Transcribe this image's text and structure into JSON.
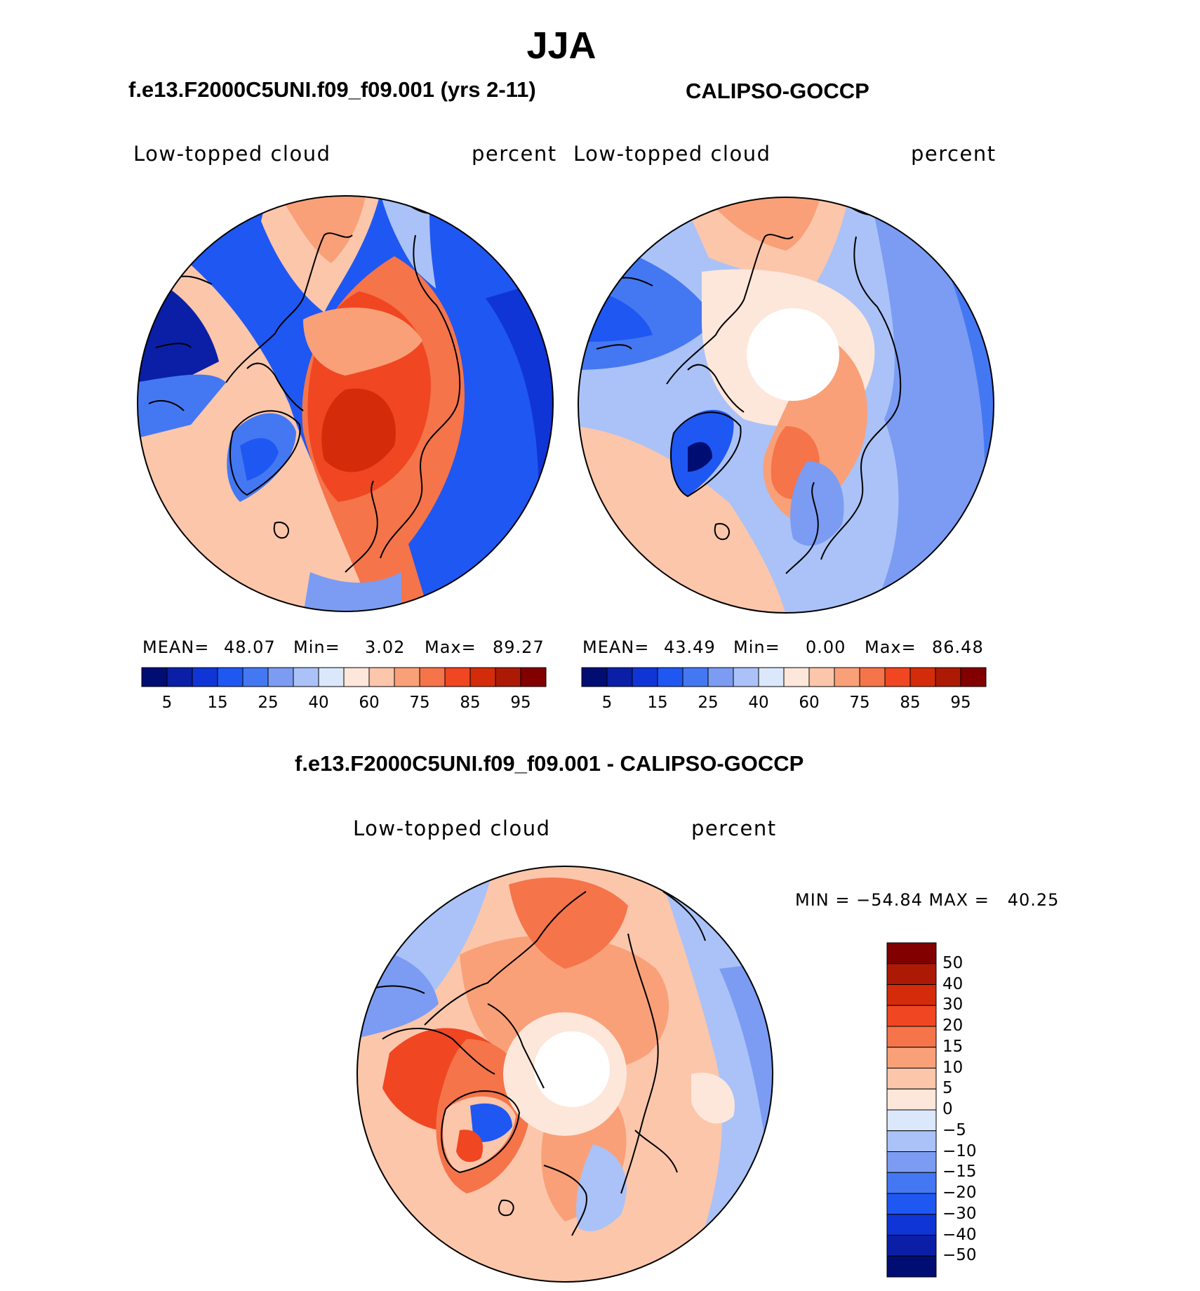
{
  "main_title": "JJA",
  "panels": [
    {
      "header": "f.e13.F2000C5UNI.f09_f09.001 (yrs 2-11)",
      "left_label": "Low-topped cloud",
      "right_label": "percent",
      "stats": {
        "mean_label": "MEAN=",
        "mean": "48.07",
        "min_label": "Min=",
        "min": "3.02",
        "max_label": "Max=",
        "max": "89.27"
      }
    },
    {
      "header": "CALIPSO-GOCCP",
      "left_label": "Low-topped cloud",
      "right_label": "percent",
      "stats": {
        "mean_label": "MEAN=",
        "mean": "43.49",
        "min_label": "Min=",
        "min": "0.00",
        "max_label": "Max=",
        "max": "86.48"
      }
    },
    {
      "header": "f.e13.F2000C5UNI.f09_f09.001 - CALIPSO-GOCCP",
      "left_label": "Low-topped cloud",
      "right_label": "percent",
      "minmax": "MIN = −54.84 MAX =   40.25"
    }
  ],
  "chart_data": [
    {
      "type": "heatmap",
      "projection": "north polar stereographic",
      "title": "f.e13.F2000C5UNI.f09_f09.001 (yrs 2-11)",
      "variable": "Low-topped cloud",
      "units": "percent",
      "mean": 48.07,
      "min": 3.02,
      "max": 89.27,
      "colorbar_ticks": [
        "5",
        "15",
        "25",
        "40",
        "60",
        "75",
        "85",
        "95"
      ],
      "colorbar_orientation": "horizontal"
    },
    {
      "type": "heatmap",
      "projection": "north polar stereographic",
      "title": "CALIPSO-GOCCP",
      "variable": "Low-topped cloud",
      "units": "percent",
      "mean": 43.49,
      "min": 0.0,
      "max": 86.48,
      "colorbar_ticks": [
        "5",
        "15",
        "25",
        "40",
        "60",
        "75",
        "85",
        "95"
      ],
      "colorbar_orientation": "horizontal",
      "missing_region": "pole"
    },
    {
      "type": "heatmap",
      "projection": "north polar stereographic",
      "title": "f.e13.F2000C5UNI.f09_f09.001 - CALIPSO-GOCCP",
      "variable": "Low-topped cloud",
      "units": "percent",
      "min": -54.84,
      "max": 40.25,
      "colorbar_ticks": [
        "50",
        "40",
        "30",
        "20",
        "15",
        "10",
        "5",
        "0",
        "−5",
        "−10",
        "−15",
        "−20",
        "−30",
        "−40",
        "−50"
      ],
      "colorbar_orientation": "vertical",
      "missing_region": "pole"
    }
  ],
  "colors": {
    "abs_scale": [
      "#000e73",
      "#0a1fa6",
      "#0f35d6",
      "#1f57f2",
      "#4478f2",
      "#7b9cf2",
      "#aac2f7",
      "#dbe8fb",
      "#fde7da",
      "#fcc6ab",
      "#f9a078",
      "#f5744a",
      "#f04622",
      "#d42c0a",
      "#ac1a05",
      "#820000"
    ],
    "diff_scale": [
      "#820000",
      "#ac1a05",
      "#d42c0a",
      "#f04622",
      "#f5744a",
      "#f9a078",
      "#fcc6ab",
      "#fde7da",
      "#dbe8fb",
      "#aac2f7",
      "#7b9cf2",
      "#4478f2",
      "#1f57f2",
      "#0f35d6",
      "#0a1fa6",
      "#000e73"
    ]
  }
}
